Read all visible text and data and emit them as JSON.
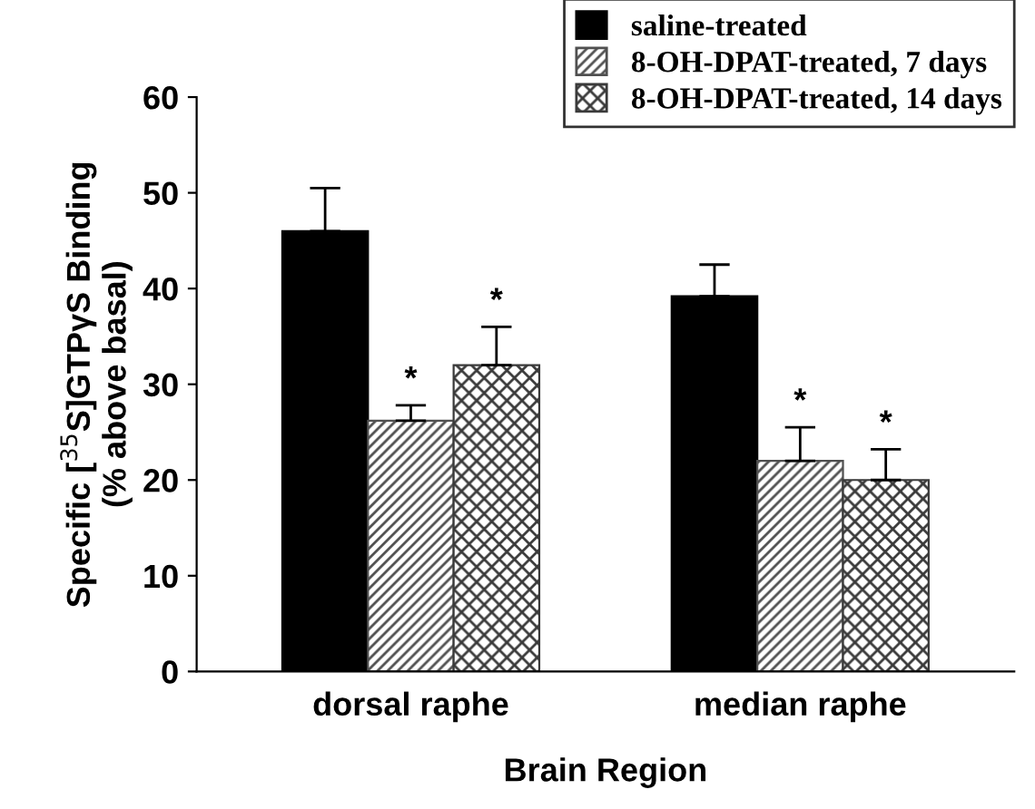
{
  "chart_data": {
    "type": "bar",
    "xlabel": "Brain Region",
    "ylabel": "Specific [$^{35}$S]GTPγS Binding\n(% above basal)",
    "categories": [
      "dorsal raphe",
      "median raphe"
    ],
    "series": [
      {
        "name": "saline-treated",
        "color": "#000000",
        "values": [
          46,
          39.2
        ],
        "errors": [
          [
            46,
            50.5
          ],
          [
            39.2,
            42.5
          ]
        ]
      },
      {
        "name": "8-OH-DPAT-treated, 7 days",
        "color": "#505050",
        "values": [
          26.2,
          22
        ],
        "errors": [
          [
            26.2,
            27.8
          ],
          [
            22,
            25.5
          ]
        ]
      },
      {
        "name": "8-OH-DPAT-treated, 14 days",
        "color": "#3a3a3a",
        "values": [
          32,
          20
        ],
        "errors": [
          [
            32,
            36
          ],
          [
            20,
            23.2
          ]
        ]
      }
    ],
    "annotations": [
      "*",
      "*",
      "*",
      "*"
    ],
    "ylim": [
      0,
      60
    ],
    "yticks": [
      0,
      10,
      20,
      30,
      40,
      50,
      60
    ],
    "grid": false,
    "legend": "top right"
  }
}
